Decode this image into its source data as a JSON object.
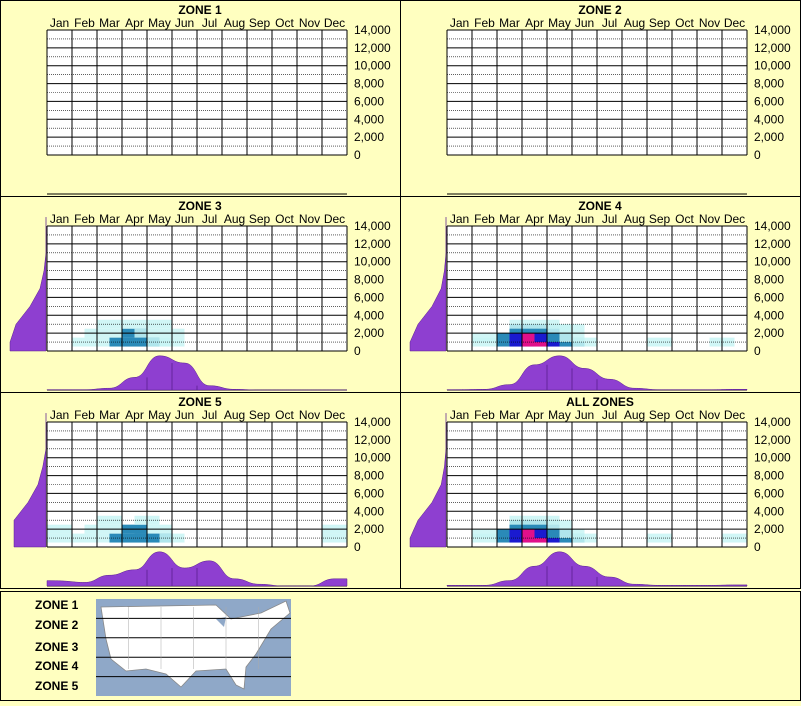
{
  "months": [
    "Jan",
    "Feb",
    "Mar",
    "Apr",
    "May",
    "Jun",
    "Jul",
    "Aug",
    "Sep",
    "Oct",
    "Nov",
    "Dec"
  ],
  "y_ticks": [
    "14,000",
    "12,000",
    "10,000",
    "8,000",
    "6,000",
    "4,000",
    "2,000",
    "0"
  ],
  "colors": {
    "background": "#ffffc0",
    "profile": "#8e3fd0",
    "heat_low": "#c8f4f4",
    "heat_mid": "#2a8ab8",
    "heat_high": "#1a1ad0",
    "heat_peak": "#e0108a",
    "zone_line": "#000000"
  },
  "chart_data": [
    {
      "type": "heatmap",
      "title": "ZONE 1",
      "x": [
        "Jan",
        "Feb",
        "Mar",
        "Apr",
        "May",
        "Jun",
        "Jul",
        "Aug",
        "Sep",
        "Oct",
        "Nov",
        "Dec"
      ],
      "ylim": [
        0,
        14000
      ],
      "cells": [],
      "month_profile": [
        0,
        0,
        0,
        0,
        0,
        0,
        0,
        0,
        0,
        0,
        0,
        0
      ],
      "elev_profile": [
        0,
        0,
        0,
        0,
        0,
        0,
        0,
        0
      ]
    },
    {
      "type": "heatmap",
      "title": "ZONE 2",
      "x": [
        "Jan",
        "Feb",
        "Mar",
        "Apr",
        "May",
        "Jun",
        "Jul",
        "Aug",
        "Sep",
        "Oct",
        "Nov",
        "Dec"
      ],
      "ylim": [
        0,
        14000
      ],
      "cells": [],
      "month_profile": [
        0,
        0,
        0,
        0,
        0,
        0,
        0,
        0,
        0,
        0,
        0,
        0
      ],
      "elev_profile": [
        0,
        0,
        0,
        0,
        0,
        0,
        0,
        0
      ]
    },
    {
      "type": "heatmap",
      "title": "ZONE 3",
      "x": [
        "Jan",
        "Feb",
        "Mar",
        "Apr",
        "May",
        "Jun",
        "Jul",
        "Aug",
        "Sep",
        "Oct",
        "Nov",
        "Dec"
      ],
      "ylim": [
        0,
        14000
      ],
      "cells": [
        {
          "m": 1.5,
          "e": 1000,
          "v": 1
        },
        {
          "m": 2.5,
          "e": 1000,
          "v": 1
        },
        {
          "m": 3.0,
          "e": 1000,
          "v": 2
        },
        {
          "m": 3.5,
          "e": 1000,
          "v": 2
        },
        {
          "m": 4.0,
          "e": 1000,
          "v": 2
        },
        {
          "m": 4.5,
          "e": 1000,
          "v": 1
        },
        {
          "m": 5.0,
          "e": 1000,
          "v": 1
        },
        {
          "m": 2.0,
          "e": 2000,
          "v": 1
        },
        {
          "m": 3.0,
          "e": 2000,
          "v": 1
        },
        {
          "m": 3.5,
          "e": 2000,
          "v": 2
        },
        {
          "m": 4.0,
          "e": 2000,
          "v": 1
        },
        {
          "m": 5.0,
          "e": 2000,
          "v": 1
        },
        {
          "m": 2.5,
          "e": 3000,
          "v": 1
        },
        {
          "m": 3.5,
          "e": 3000,
          "v": 1
        },
        {
          "m": 4.5,
          "e": 3000,
          "v": 1
        }
      ],
      "month_profile": [
        0.01,
        0.01,
        0.05,
        0.35,
        0.95,
        0.75,
        0.12,
        0.02,
        0.0,
        0.0,
        0.0,
        0.0
      ],
      "elev_profile": [
        0.9,
        0.75,
        0.4,
        0.15,
        0.05,
        0.0,
        0.0,
        0.0
      ]
    },
    {
      "type": "heatmap",
      "title": "ZONE 4",
      "x": [
        "Jan",
        "Feb",
        "Mar",
        "Apr",
        "May",
        "Jun",
        "Jul",
        "Aug",
        "Sep",
        "Oct",
        "Nov",
        "Dec"
      ],
      "ylim": [
        0,
        14000
      ],
      "cells": [
        {
          "m": 1.5,
          "e": 1000,
          "v": 1
        },
        {
          "m": 2.5,
          "e": 1000,
          "v": 2
        },
        {
          "m": 3.0,
          "e": 1000,
          "v": 3
        },
        {
          "m": 3.5,
          "e": 1000,
          "v": 4
        },
        {
          "m": 4.0,
          "e": 1000,
          "v": 4
        },
        {
          "m": 4.5,
          "e": 1000,
          "v": 3
        },
        {
          "m": 5.0,
          "e": 1000,
          "v": 2
        },
        {
          "m": 5.5,
          "e": 1000,
          "v": 1
        },
        {
          "m": 8.5,
          "e": 1000,
          "v": 1
        },
        {
          "m": 11.0,
          "e": 1000,
          "v": 1
        },
        {
          "m": 1.5,
          "e": 1500,
          "v": 1
        },
        {
          "m": 2.5,
          "e": 1500,
          "v": 2
        },
        {
          "m": 3.0,
          "e": 1500,
          "v": 3
        },
        {
          "m": 3.5,
          "e": 1500,
          "v": 4
        },
        {
          "m": 4.0,
          "e": 1500,
          "v": 3
        },
        {
          "m": 4.5,
          "e": 1500,
          "v": 2
        },
        {
          "m": 5.0,
          "e": 1500,
          "v": 1
        },
        {
          "m": 3.0,
          "e": 2500,
          "v": 2
        },
        {
          "m": 3.5,
          "e": 2500,
          "v": 2
        },
        {
          "m": 4.0,
          "e": 2500,
          "v": 2
        },
        {
          "m": 4.5,
          "e": 2500,
          "v": 1
        },
        {
          "m": 5.0,
          "e": 2500,
          "v": 1
        },
        {
          "m": 3.0,
          "e": 3000,
          "v": 1
        },
        {
          "m": 4.0,
          "e": 3000,
          "v": 1
        }
      ],
      "month_profile": [
        0.01,
        0.02,
        0.15,
        0.7,
        0.95,
        0.6,
        0.3,
        0.05,
        0.01,
        0.01,
        0.01,
        0.02
      ],
      "elev_profile": [
        0.9,
        0.7,
        0.35,
        0.12,
        0.04,
        0.0,
        0.0,
        0.0
      ]
    },
    {
      "type": "heatmap",
      "title": "ZONE 5",
      "x": [
        "Jan",
        "Feb",
        "Mar",
        "Apr",
        "May",
        "Jun",
        "Jul",
        "Aug",
        "Sep",
        "Oct",
        "Nov",
        "Dec"
      ],
      "ylim": [
        0,
        14000
      ],
      "cells": [
        {
          "m": 0.5,
          "e": 1000,
          "v": 1
        },
        {
          "m": 1.5,
          "e": 1000,
          "v": 1
        },
        {
          "m": 2.5,
          "e": 1000,
          "v": 1
        },
        {
          "m": 3.0,
          "e": 1000,
          "v": 2
        },
        {
          "m": 3.5,
          "e": 1000,
          "v": 2
        },
        {
          "m": 4.0,
          "e": 1000,
          "v": 2
        },
        {
          "m": 4.5,
          "e": 1000,
          "v": 2
        },
        {
          "m": 5.0,
          "e": 1000,
          "v": 1
        },
        {
          "m": 11.5,
          "e": 1000,
          "v": 1
        },
        {
          "m": 0.5,
          "e": 2000,
          "v": 1
        },
        {
          "m": 2.0,
          "e": 2000,
          "v": 1
        },
        {
          "m": 3.0,
          "e": 2000,
          "v": 1
        },
        {
          "m": 3.5,
          "e": 2000,
          "v": 2
        },
        {
          "m": 4.5,
          "e": 2000,
          "v": 1
        },
        {
          "m": 11.5,
          "e": 2000,
          "v": 1
        },
        {
          "m": 2.5,
          "e": 3000,
          "v": 1
        },
        {
          "m": 4.0,
          "e": 3000,
          "v": 1
        }
      ],
      "month_profile": [
        0.15,
        0.1,
        0.3,
        0.45,
        0.95,
        0.5,
        0.7,
        0.2,
        0.05,
        0.0,
        0.0,
        0.2
      ],
      "elev_profile": [
        0.8,
        0.8,
        0.45,
        0.2,
        0.08,
        0.0,
        0.0,
        0.0
      ]
    },
    {
      "type": "heatmap",
      "title": "ALL ZONES",
      "x": [
        "Jan",
        "Feb",
        "Mar",
        "Apr",
        "May",
        "Jun",
        "Jul",
        "Aug",
        "Sep",
        "Oct",
        "Nov",
        "Dec"
      ],
      "ylim": [
        0,
        14000
      ],
      "cells": [
        {
          "m": 1.5,
          "e": 1000,
          "v": 1
        },
        {
          "m": 2.5,
          "e": 1000,
          "v": 2
        },
        {
          "m": 3.0,
          "e": 1000,
          "v": 3
        },
        {
          "m": 3.5,
          "e": 1000,
          "v": 4
        },
        {
          "m": 4.0,
          "e": 1000,
          "v": 4
        },
        {
          "m": 4.5,
          "e": 1000,
          "v": 3
        },
        {
          "m": 5.0,
          "e": 1000,
          "v": 2
        },
        {
          "m": 5.5,
          "e": 1000,
          "v": 1
        },
        {
          "m": 8.5,
          "e": 1000,
          "v": 1
        },
        {
          "m": 11.5,
          "e": 1000,
          "v": 1
        },
        {
          "m": 1.5,
          "e": 1500,
          "v": 1
        },
        {
          "m": 2.5,
          "e": 1500,
          "v": 2
        },
        {
          "m": 3.0,
          "e": 1500,
          "v": 3
        },
        {
          "m": 3.5,
          "e": 1500,
          "v": 4
        },
        {
          "m": 4.0,
          "e": 1500,
          "v": 3
        },
        {
          "m": 4.5,
          "e": 1500,
          "v": 2
        },
        {
          "m": 5.0,
          "e": 1500,
          "v": 1
        },
        {
          "m": 3.0,
          "e": 2500,
          "v": 2
        },
        {
          "m": 3.5,
          "e": 2500,
          "v": 2
        },
        {
          "m": 4.0,
          "e": 2500,
          "v": 2
        },
        {
          "m": 4.5,
          "e": 2500,
          "v": 1
        },
        {
          "m": 3.0,
          "e": 3000,
          "v": 1
        },
        {
          "m": 4.0,
          "e": 3000,
          "v": 1
        }
      ],
      "month_profile": [
        0.02,
        0.02,
        0.15,
        0.55,
        0.95,
        0.55,
        0.25,
        0.05,
        0.02,
        0.02,
        0.02,
        0.03
      ],
      "elev_profile": [
        0.9,
        0.7,
        0.35,
        0.12,
        0.04,
        0.0,
        0.0,
        0.0
      ]
    }
  ],
  "legend": {
    "zones": [
      "ZONE 1",
      "ZONE 2",
      "ZONE 3",
      "ZONE 4",
      "ZONE 5"
    ],
    "map_icon": "usa-map"
  }
}
